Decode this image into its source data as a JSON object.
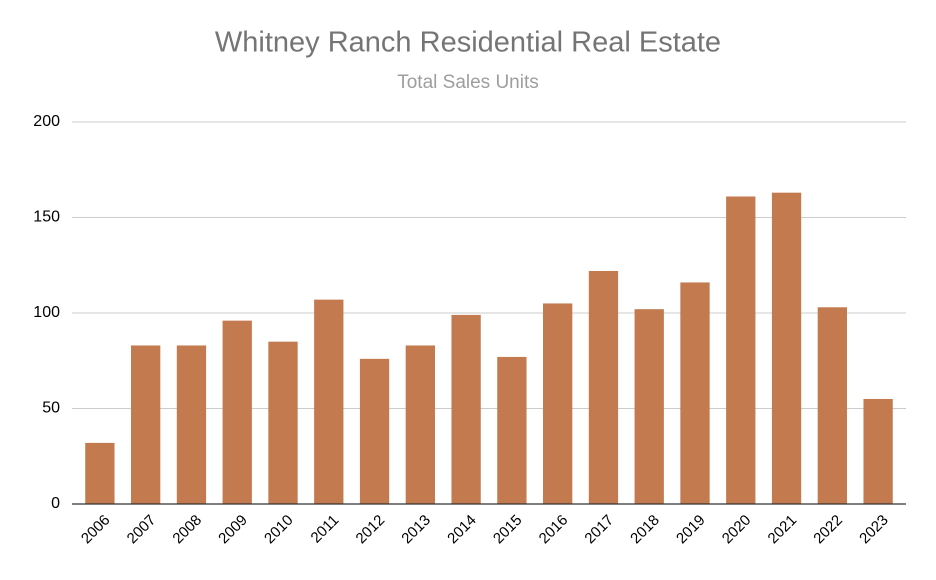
{
  "chart_data": {
    "type": "bar",
    "title": "Whitney Ranch Residential Real Estate",
    "subtitle": "Total Sales Units",
    "categories": [
      "2006",
      "2007",
      "2008",
      "2009",
      "2010",
      "2011",
      "2012",
      "2013",
      "2014",
      "2015",
      "2016",
      "2017",
      "2018",
      "2019",
      "2020",
      "2021",
      "2022",
      "2023"
    ],
    "values": [
      32,
      83,
      83,
      96,
      85,
      107,
      76,
      83,
      99,
      77,
      105,
      122,
      102,
      116,
      161,
      163,
      103,
      55
    ],
    "color": "#c27a4e",
    "ylim": [
      0,
      200
    ],
    "yticks": [
      0,
      50,
      100,
      150,
      200
    ],
    "grid": true
  }
}
